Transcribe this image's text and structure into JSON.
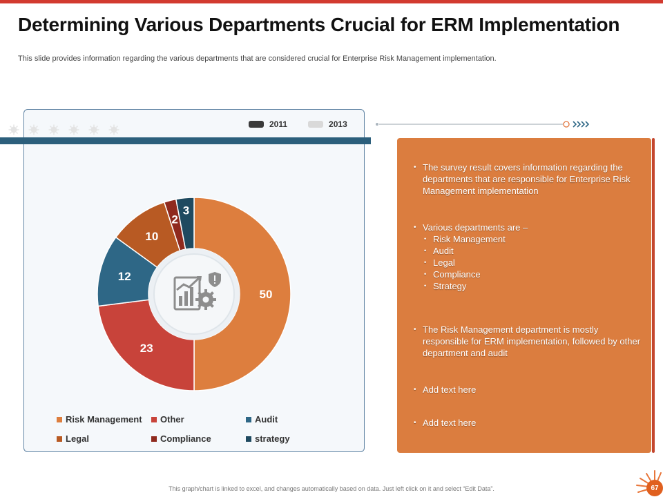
{
  "slide": {
    "title": "Determining Various Departments Crucial for ERM Implementation",
    "subtitle": "This slide provides information regarding the various departments that are considered crucial for Enterprise Risk Management implementation.",
    "footer": "This graph/chart is linked to excel, and changes automatically based on data. Just left click on it and select “Edit Data”.",
    "page_number": "67"
  },
  "legend_top": [
    {
      "label": "2011",
      "color": "#3a3a3a"
    },
    {
      "label": "2013",
      "color": "#d9d9d9"
    }
  ],
  "chart_data": {
    "type": "pie",
    "subtype": "donut",
    "title": "",
    "categories": [
      "Risk Management",
      "Other",
      "Audit",
      "Legal",
      "Compliance",
      "strategy"
    ],
    "values": [
      50,
      23,
      12,
      10,
      2,
      3
    ],
    "colors": [
      "#dd7e3e",
      "#c8433a",
      "#2e6786",
      "#b85a23",
      "#8f2a1e",
      "#1f4a60"
    ],
    "legend_position": "bottom"
  },
  "panel": {
    "bullet1": "The survey result covers information regarding the departments that are responsible for Enterprise Risk Management implementation",
    "bullet2": "Various departments are –",
    "sub_items": [
      "Risk Management",
      "Audit",
      "Legal",
      "Compliance",
      "Strategy"
    ],
    "bullet3": "The Risk Management department is mostly responsible for ERM implementation, followed by other department and audit",
    "bullet4": "Add text here",
    "bullet5": "Add text here"
  },
  "icons": {
    "center": "analytics-gear-shield-icon",
    "timeline_end": "chevrons-right-icon",
    "decor": "virus-icon",
    "corner": "sun-icon"
  }
}
